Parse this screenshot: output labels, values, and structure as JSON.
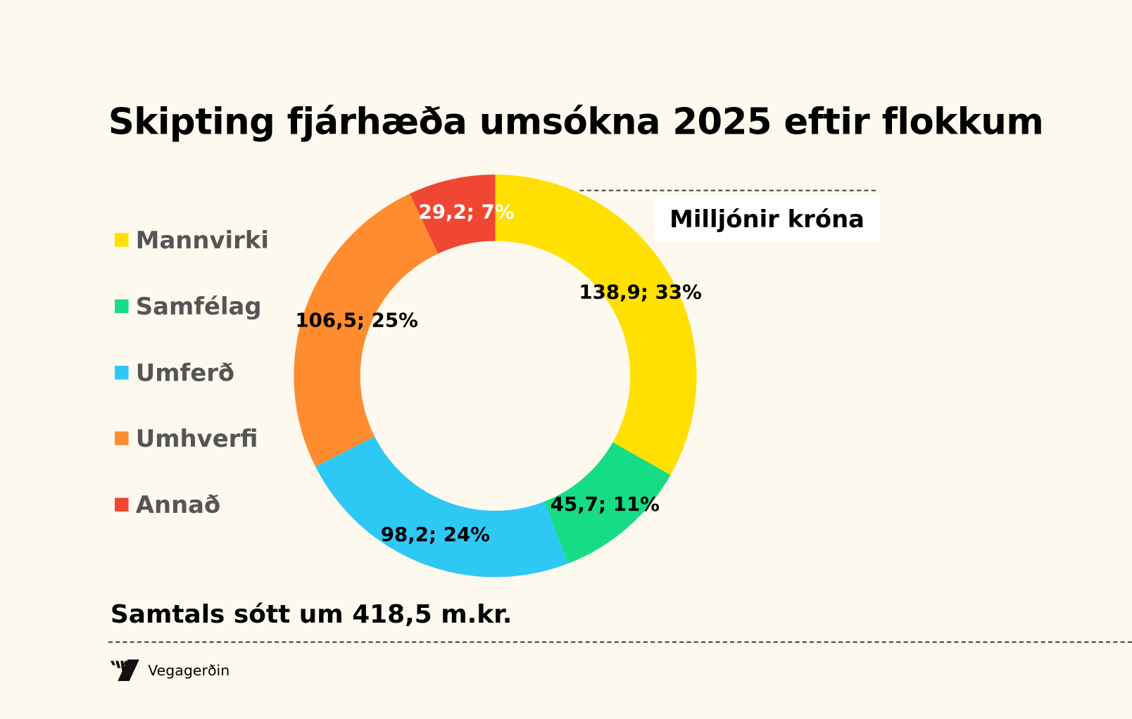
{
  "chart_data": {
    "type": "pie",
    "variant": "donut",
    "title": "Skipting fjárhæða umsókna 2025 eftir flokkum",
    "unit_label": "Milljónir króna",
    "categories": [
      "Mannvirki",
      "Samfélag",
      "Umferð",
      "Umhverfi",
      "Annað"
    ],
    "values": [
      138.9,
      45.7,
      98.2,
      106.5,
      29.2
    ],
    "data_labels": [
      "138,9; 33%",
      "45,7; 11%",
      "98,2; 24%",
      "106,5; 25%",
      "29,2; 7%"
    ],
    "colors": [
      "#FFE000",
      "#17DC86",
      "#2EC8F5",
      "#FF8C2E",
      "#F04733"
    ],
    "legend_position": "left"
  },
  "footer": {
    "total_text": "Samtals sótt um 418,5 m.kr.",
    "brand": "Vegagerðin"
  }
}
